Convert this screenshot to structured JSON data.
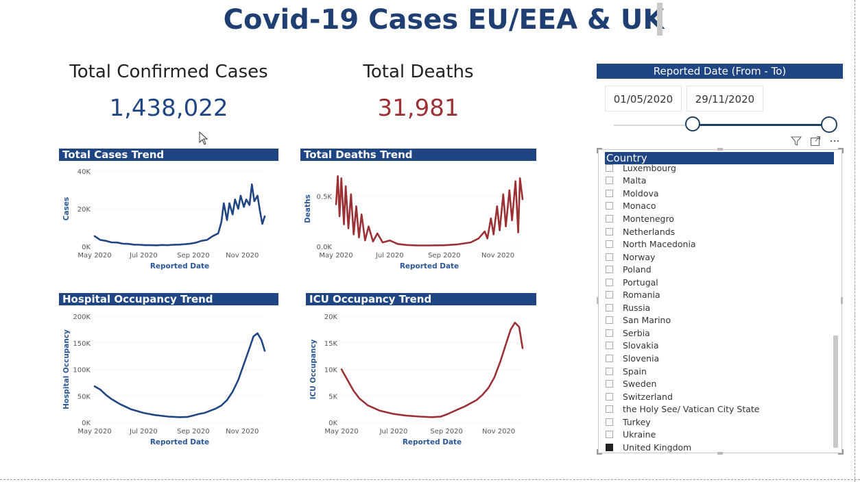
{
  "page": {
    "title": "Covid-19 Cases EU/EEA & UK"
  },
  "kpis": {
    "cases_label": "Total Confirmed Cases",
    "cases_value": "1,438,022",
    "deaths_label": "Total Deaths",
    "deaths_value": "31,981"
  },
  "colors": {
    "blue": "#1f4583",
    "red": "#9b3035",
    "header": "#1f4583"
  },
  "date_slicer": {
    "title": "Reported Date (From - To)",
    "from": "01/05/2020",
    "to": "29/11/2020",
    "from_position": 0.36,
    "to_position": 1.0
  },
  "country_slicer": {
    "title": "Country",
    "items": [
      {
        "label": "Luxembourg",
        "checked": false
      },
      {
        "label": "Malta",
        "checked": false
      },
      {
        "label": "Moldova",
        "checked": false
      },
      {
        "label": "Monaco",
        "checked": false
      },
      {
        "label": "Montenegro",
        "checked": false
      },
      {
        "label": "Netherlands",
        "checked": false
      },
      {
        "label": "North Macedonia",
        "checked": false
      },
      {
        "label": "Norway",
        "checked": false
      },
      {
        "label": "Poland",
        "checked": false
      },
      {
        "label": "Portugal",
        "checked": false
      },
      {
        "label": "Romania",
        "checked": false
      },
      {
        "label": "Russia",
        "checked": false
      },
      {
        "label": "San Marino",
        "checked": false
      },
      {
        "label": "Serbia",
        "checked": false
      },
      {
        "label": "Slovakia",
        "checked": false
      },
      {
        "label": "Slovenia",
        "checked": false
      },
      {
        "label": "Spain",
        "checked": false
      },
      {
        "label": "Sweden",
        "checked": false
      },
      {
        "label": "Switzerland",
        "checked": false
      },
      {
        "label": "the Holy See/ Vatican City State",
        "checked": false
      },
      {
        "label": "Turkey",
        "checked": false
      },
      {
        "label": "Ukraine",
        "checked": false
      },
      {
        "label": "United Kingdom",
        "checked": true
      }
    ],
    "icons": [
      "filter-icon",
      "focus-mode-icon",
      "more-options-icon"
    ]
  },
  "chart_data": [
    {
      "id": "cases",
      "type": "line",
      "title": "Total Cases Trend",
      "xlabel": "Reported Date",
      "ylabel": "Cases",
      "color": "#1f4583",
      "x_ticks": [
        "May 2020",
        "Jul 2020",
        "Sep 2020",
        "Nov 2020"
      ],
      "y_ticks": [
        "0K",
        "20K",
        "40K"
      ],
      "ylim": [
        0,
        40000
      ],
      "x": [
        "2020-05-01",
        "2020-05-08",
        "2020-05-15",
        "2020-05-22",
        "2020-05-29",
        "2020-06-05",
        "2020-06-12",
        "2020-06-19",
        "2020-06-26",
        "2020-07-03",
        "2020-07-10",
        "2020-07-17",
        "2020-07-24",
        "2020-07-31",
        "2020-08-07",
        "2020-08-14",
        "2020-08-21",
        "2020-08-28",
        "2020-09-04",
        "2020-09-11",
        "2020-09-18",
        "2020-09-25",
        "2020-10-02",
        "2020-10-06",
        "2020-10-09",
        "2020-10-13",
        "2020-10-16",
        "2020-10-20",
        "2020-10-23",
        "2020-10-27",
        "2020-10-30",
        "2020-11-03",
        "2020-11-06",
        "2020-11-10",
        "2020-11-13",
        "2020-11-16",
        "2020-11-20",
        "2020-11-23",
        "2020-11-26",
        "2020-11-29"
      ],
      "values": [
        5500,
        3500,
        3000,
        2200,
        2100,
        1500,
        1400,
        1000,
        900,
        700,
        700,
        600,
        800,
        700,
        900,
        1000,
        1200,
        1500,
        2000,
        3000,
        3500,
        5500,
        7000,
        13000,
        23000,
        14000,
        23000,
        17000,
        25000,
        20000,
        27000,
        21000,
        25000,
        22000,
        33000,
        24000,
        27000,
        19000,
        12000,
        16000
      ]
    },
    {
      "id": "deaths",
      "type": "line",
      "title": "Total Deaths Trend",
      "xlabel": "Reported Date",
      "ylabel": "Deaths",
      "color": "#9b3035",
      "x_ticks": [
        "May 2020",
        "Jul 2020",
        "Sep 2020",
        "Nov 2020"
      ],
      "y_ticks": [
        "0.0K",
        "0.5K"
      ],
      "ylim": [
        0,
        750
      ],
      "x": [
        "2020-05-01",
        "2020-05-03",
        "2020-05-05",
        "2020-05-07",
        "2020-05-10",
        "2020-05-12",
        "2020-05-15",
        "2020-05-18",
        "2020-05-21",
        "2020-05-24",
        "2020-05-27",
        "2020-05-30",
        "2020-06-03",
        "2020-06-07",
        "2020-06-12",
        "2020-06-17",
        "2020-06-23",
        "2020-07-01",
        "2020-07-10",
        "2020-07-20",
        "2020-08-01",
        "2020-08-15",
        "2020-09-01",
        "2020-09-15",
        "2020-10-01",
        "2020-10-10",
        "2020-10-17",
        "2020-10-20",
        "2020-10-24",
        "2020-10-27",
        "2020-10-31",
        "2020-11-03",
        "2020-11-07",
        "2020-11-10",
        "2020-11-14",
        "2020-11-17",
        "2020-11-21",
        "2020-11-24",
        "2020-11-26",
        "2020-11-29"
      ],
      "values": [
        420,
        700,
        300,
        680,
        220,
        600,
        180,
        520,
        120,
        400,
        90,
        320,
        60,
        200,
        50,
        130,
        40,
        60,
        25,
        15,
        10,
        10,
        12,
        20,
        40,
        80,
        150,
        80,
        280,
        120,
        400,
        160,
        520,
        200,
        560,
        260,
        650,
        140,
        680,
        470
      ]
    },
    {
      "id": "hospital",
      "type": "line",
      "title": "Hospital Occupancy Trend",
      "xlabel": "Reported Date",
      "ylabel": "Hospital Occupancy",
      "color": "#1f4583",
      "x_ticks": [
        "May 2020",
        "Jul 2020",
        "Sep 2020",
        "Nov 2020"
      ],
      "y_ticks": [
        "0K",
        "50K",
        "100K",
        "150K",
        "200K"
      ],
      "ylim": [
        0,
        200000
      ],
      "x": [
        "2020-05-01",
        "2020-05-08",
        "2020-05-15",
        "2020-05-22",
        "2020-06-01",
        "2020-06-15",
        "2020-07-01",
        "2020-07-15",
        "2020-08-01",
        "2020-08-15",
        "2020-08-25",
        "2020-09-01",
        "2020-09-08",
        "2020-09-15",
        "2020-09-22",
        "2020-09-29",
        "2020-10-06",
        "2020-10-13",
        "2020-10-20",
        "2020-10-27",
        "2020-11-03",
        "2020-11-10",
        "2020-11-15",
        "2020-11-20",
        "2020-11-25",
        "2020-11-29"
      ],
      "values": [
        68000,
        62000,
        52000,
        44000,
        35000,
        25000,
        18000,
        14000,
        11000,
        10000,
        10500,
        13000,
        16000,
        18000,
        22000,
        26000,
        32000,
        42000,
        58000,
        80000,
        110000,
        140000,
        162000,
        168000,
        155000,
        135000
      ]
    },
    {
      "id": "icu",
      "type": "line",
      "title": "ICU Occupancy Trend",
      "xlabel": "Reported Date",
      "ylabel": "ICU Occupancy",
      "color": "#9b3035",
      "x_ticks": [
        "May 2020",
        "Jul 2020",
        "Sep 2020",
        "Nov 2020"
      ],
      "y_ticks": [
        "0K",
        "5K",
        "10K",
        "15K",
        "20K"
      ],
      "ylim": [
        0,
        20000
      ],
      "x": [
        "2020-05-01",
        "2020-05-08",
        "2020-05-15",
        "2020-05-22",
        "2020-06-01",
        "2020-06-15",
        "2020-07-01",
        "2020-07-15",
        "2020-08-01",
        "2020-08-15",
        "2020-08-25",
        "2020-09-01",
        "2020-09-08",
        "2020-09-15",
        "2020-09-22",
        "2020-09-29",
        "2020-10-06",
        "2020-10-13",
        "2020-10-20",
        "2020-10-27",
        "2020-11-03",
        "2020-11-10",
        "2020-11-15",
        "2020-11-20",
        "2020-11-25",
        "2020-11-29"
      ],
      "values": [
        10000,
        8000,
        6000,
        4500,
        3200,
        2200,
        1600,
        1300,
        1100,
        1000,
        1100,
        1500,
        2000,
        2500,
        3000,
        3600,
        4200,
        5200,
        6500,
        8500,
        11500,
        15000,
        17500,
        18800,
        18000,
        14000
      ]
    }
  ]
}
